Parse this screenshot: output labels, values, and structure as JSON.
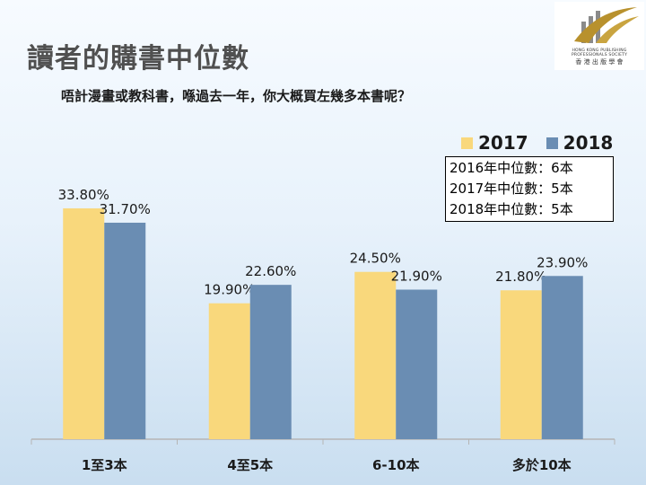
{
  "title": "讀者的購書中位數",
  "subtitle": "唔計漫畫或教科書，喺過去一年，你大概買左幾多本書呢？",
  "logo": {
    "tagline": "HONG KONG PUBLISHING PROFESSIONALS SOCIETY",
    "name_cn": "香 港 出 版 學 會"
  },
  "median_notes": [
    "2016年中位數：6本",
    "2017年中位數：5本",
    "2018年中位數：5本"
  ],
  "colors": {
    "series_2017": "#f9d87c",
    "series_2018": "#6a8db3"
  },
  "chart_data": {
    "type": "bar",
    "title": "讀者的購書中位數",
    "xlabel": "",
    "ylabel": "",
    "ylim": [
      0,
      40
    ],
    "grid": false,
    "legend": "top-right",
    "categories": [
      "1至3本",
      "4至5本",
      "6-10本",
      "多於10本"
    ],
    "series": [
      {
        "name": "2017",
        "values": [
          33.8,
          19.9,
          24.5,
          21.8
        ],
        "labels": [
          "33.80%",
          "19.90%",
          "24.50%",
          "21.80%"
        ]
      },
      {
        "name": "2018",
        "values": [
          31.7,
          22.6,
          21.9,
          23.9
        ],
        "labels": [
          "31.70%",
          "22.60%",
          "21.90%",
          "23.90%"
        ]
      }
    ]
  }
}
